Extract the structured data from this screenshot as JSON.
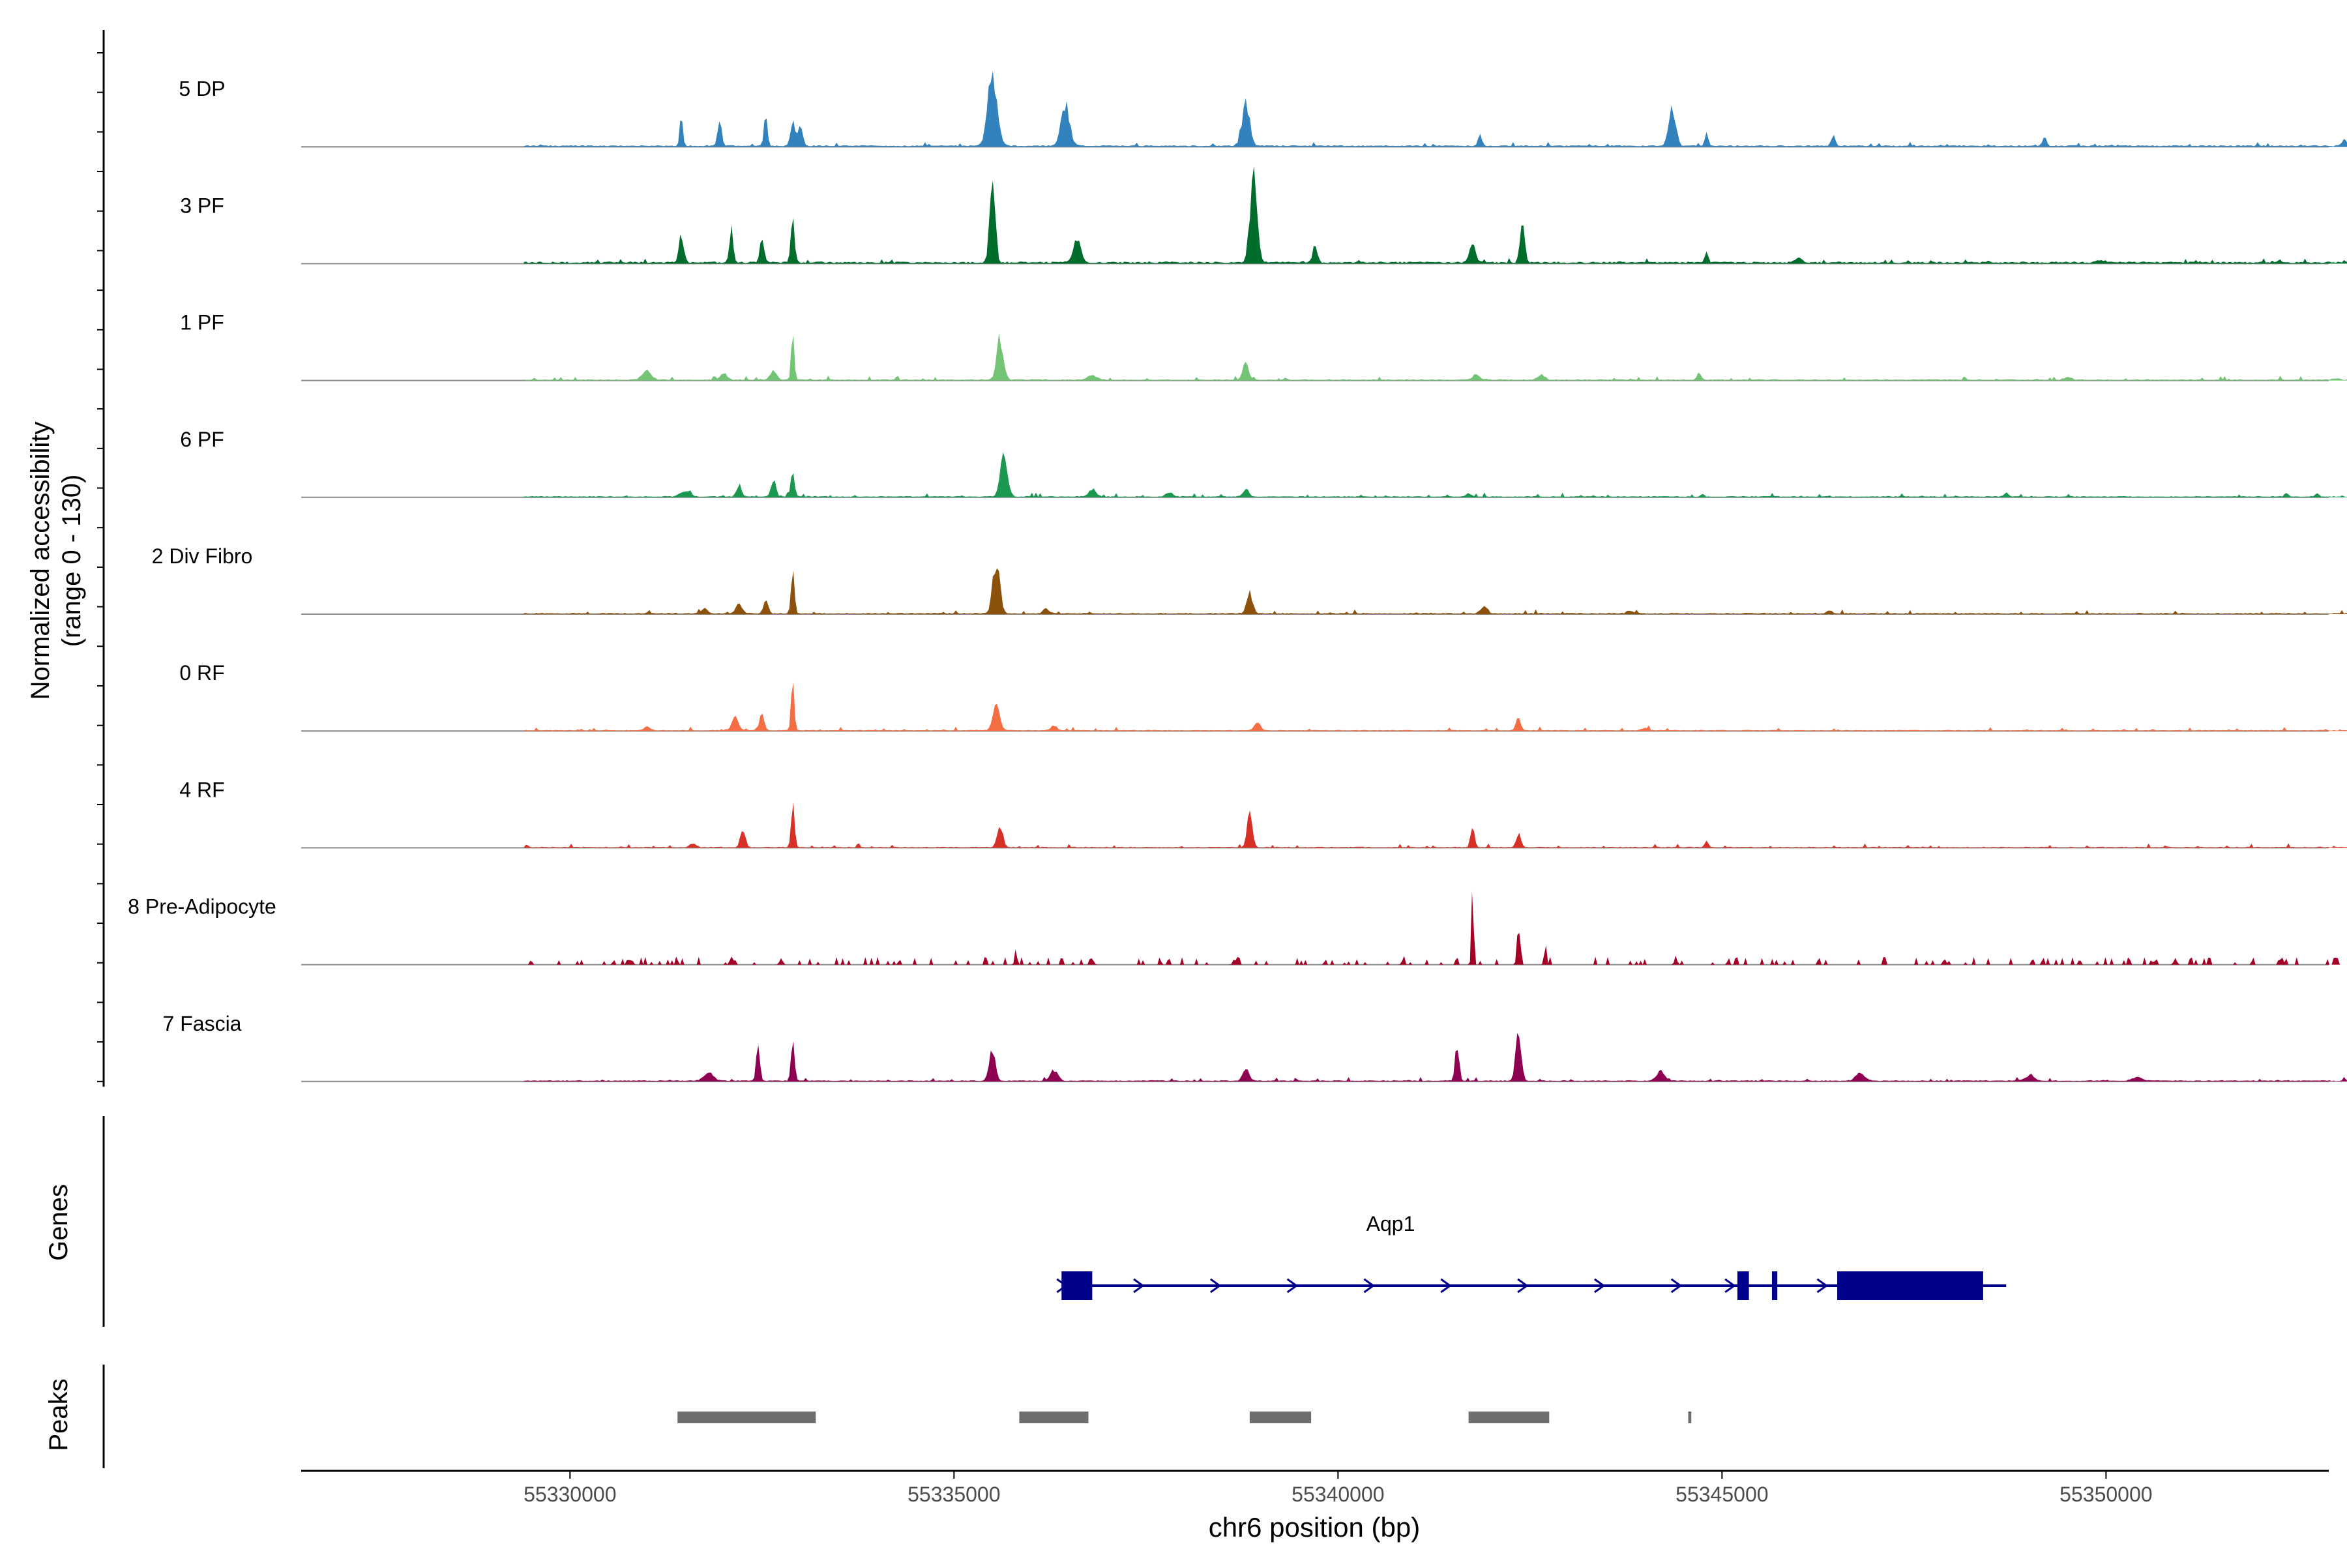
{
  "colors": {
    "baseline": "#8a8a8a",
    "axis": "#000000",
    "text": "#000000",
    "tick_text": "#4d4d4d",
    "gene": "#00008b",
    "peak": "#6e6e6e"
  },
  "chart_data": {
    "type": "area",
    "title": "",
    "xlabel": "chr6 position (bp)",
    "ylabel": "Normalized accessibility\n(range 0 - 130)",
    "ylabel_lines": [
      "Normalized accessibility",
      "(range 0 - 130)"
    ],
    "xlim": [
      55326500,
      55352900
    ],
    "ylim": [
      0,
      130
    ],
    "x_ticks": [
      55330000,
      55335000,
      55340000,
      55345000,
      55350000
    ],
    "x_tick_labels": [
      "55330000",
      "55335000",
      "55340000",
      "55345000",
      "55350000"
    ],
    "track_range": [
      55329400,
      55353500
    ],
    "series": [
      {
        "name": "5 DP",
        "color": "#3182bd",
        "base": 4,
        "peaks": [
          [
            55331450,
            130,
            20
          ],
          [
            55331950,
            110,
            25
          ],
          [
            55332550,
            120,
            22
          ],
          [
            55332900,
            90,
            30
          ],
          [
            55333000,
            80,
            30
          ],
          [
            55335500,
            280,
            60
          ],
          [
            55336450,
            165,
            55
          ],
          [
            55338800,
            170,
            50
          ],
          [
            55341850,
            45,
            25
          ],
          [
            55344350,
            145,
            45
          ],
          [
            55344800,
            60,
            20
          ],
          [
            55346450,
            45,
            25
          ],
          [
            55349200,
            40,
            25
          ],
          [
            55353100,
            25,
            30
          ]
        ]
      },
      {
        "name": "3 PF",
        "color": "#006d2c",
        "base": 5,
        "peaks": [
          [
            55331450,
            110,
            30
          ],
          [
            55332100,
            130,
            25
          ],
          [
            55332500,
            100,
            25
          ],
          [
            55332900,
            160,
            25
          ],
          [
            55335500,
            360,
            35
          ],
          [
            55336600,
            90,
            50
          ],
          [
            55338900,
            350,
            45
          ],
          [
            55339700,
            70,
            30
          ],
          [
            55341750,
            70,
            40
          ],
          [
            55342400,
            155,
            30
          ],
          [
            55344800,
            40,
            20
          ],
          [
            55346000,
            20,
            40
          ],
          [
            55349900,
            10,
            40
          ]
        ]
      },
      {
        "name": "1 PF",
        "color": "#74c476",
        "base": 3,
        "peaks": [
          [
            55331000,
            35,
            60
          ],
          [
            55332000,
            30,
            40
          ],
          [
            55332650,
            40,
            40
          ],
          [
            55332900,
            220,
            18
          ],
          [
            55335600,
            165,
            45
          ],
          [
            55336800,
            20,
            60
          ],
          [
            55338800,
            65,
            40
          ],
          [
            55341800,
            25,
            40
          ],
          [
            55342650,
            20,
            45
          ],
          [
            55344700,
            25,
            25
          ],
          [
            55349500,
            10,
            50
          ],
          [
            55353000,
            6,
            50
          ]
        ]
      },
      {
        "name": "6 PF",
        "color": "#1a9850",
        "base": 3,
        "peaks": [
          [
            55331500,
            25,
            60
          ],
          [
            55332200,
            50,
            30
          ],
          [
            55332650,
            70,
            30
          ],
          [
            55332900,
            95,
            25
          ],
          [
            55335650,
            170,
            45
          ],
          [
            55336800,
            25,
            50
          ],
          [
            55337800,
            20,
            40
          ],
          [
            55338800,
            25,
            40
          ],
          [
            55341700,
            12,
            40
          ],
          [
            55344750,
            15,
            20
          ],
          [
            55348700,
            15,
            30
          ],
          [
            55352350,
            15,
            25
          ],
          [
            55352750,
            12,
            20
          ]
        ]
      },
      {
        "name": "2 Div Fibro",
        "color": "#8c510a",
        "base": 3,
        "peaks": [
          [
            55331750,
            20,
            40
          ],
          [
            55332200,
            35,
            40
          ],
          [
            55332550,
            55,
            30
          ],
          [
            55332900,
            160,
            22
          ],
          [
            55335550,
            210,
            45
          ],
          [
            55336200,
            20,
            40
          ],
          [
            55338850,
            85,
            40
          ],
          [
            55341900,
            30,
            40
          ],
          [
            55343800,
            12,
            40
          ],
          [
            55346400,
            10,
            40
          ]
        ]
      },
      {
        "name": "0 RF",
        "color": "#f46d43",
        "base": 2.5,
        "peaks": [
          [
            55331000,
            15,
            40
          ],
          [
            55332150,
            55,
            40
          ],
          [
            55332500,
            60,
            30
          ],
          [
            55332900,
            190,
            20
          ],
          [
            55335550,
            100,
            45
          ],
          [
            55336300,
            20,
            40
          ],
          [
            55338950,
            30,
            40
          ],
          [
            55342350,
            55,
            30
          ],
          [
            55344000,
            10,
            40
          ]
        ]
      },
      {
        "name": "4 RF",
        "color": "#d73027",
        "base": 2.5,
        "peaks": [
          [
            55331600,
            15,
            40
          ],
          [
            55332250,
            80,
            30
          ],
          [
            55332900,
            170,
            22
          ],
          [
            55335600,
            95,
            35
          ],
          [
            55338850,
            140,
            35
          ],
          [
            55341750,
            75,
            25
          ],
          [
            55342350,
            60,
            30
          ],
          [
            55344800,
            25,
            25
          ]
        ]
      },
      {
        "name": "8 Pre-Adipocyte",
        "color": "#a50026",
        "base": 2,
        "peaks": [
          [
            55341750,
            390,
            12
          ],
          [
            55342350,
            160,
            18
          ],
          [
            55342700,
            70,
            15
          ],
          [
            55335800,
            60,
            12
          ],
          [
            55330800,
            20,
            20
          ],
          [
            55332100,
            30,
            20
          ],
          [
            55332750,
            25,
            20
          ],
          [
            55336800,
            25,
            20
          ],
          [
            55338650,
            25,
            20
          ],
          [
            55340850,
            20,
            20
          ],
          [
            55344400,
            25,
            20
          ],
          [
            55347900,
            25,
            20
          ],
          [
            55350900,
            25,
            20
          ],
          [
            55352300,
            15,
            20
          ]
        ]
      },
      {
        "name": "7 Fascia",
        "color": "#8e0152",
        "base": 3,
        "peaks": [
          [
            55331800,
            35,
            60
          ],
          [
            55332450,
            165,
            22
          ],
          [
            55332900,
            185,
            22
          ],
          [
            55335500,
            125,
            40
          ],
          [
            55336300,
            40,
            50
          ],
          [
            55338800,
            55,
            40
          ],
          [
            55341550,
            150,
            25
          ],
          [
            55342350,
            200,
            35
          ],
          [
            55344200,
            40,
            50
          ],
          [
            55346800,
            30,
            60
          ],
          [
            55349000,
            20,
            60
          ],
          [
            55350400,
            15,
            60
          ],
          [
            55353100,
            5,
            30
          ]
        ]
      }
    ],
    "genes": {
      "label": "Genes",
      "name": "Aqp1",
      "strand": "+",
      "line": [
        55336400,
        55348700
      ],
      "exons": [
        [
          55336400,
          55336800
        ],
        [
          55345200,
          55345350
        ],
        [
          55345650,
          55345720
        ],
        [
          55346500,
          55348400
        ]
      ],
      "arrows": [
        55336400,
        55337400,
        55338400,
        55339400,
        55340400,
        55341400,
        55342400,
        55343400,
        55344400,
        55345100,
        55346300
      ]
    },
    "peaks_track": {
      "label": "Peaks",
      "regions": [
        [
          55331400,
          55333200
        ],
        [
          55335850,
          55336750
        ],
        [
          55338850,
          55339650
        ],
        [
          55341700,
          55342750
        ],
        [
          55344560,
          55344600
        ]
      ]
    }
  }
}
